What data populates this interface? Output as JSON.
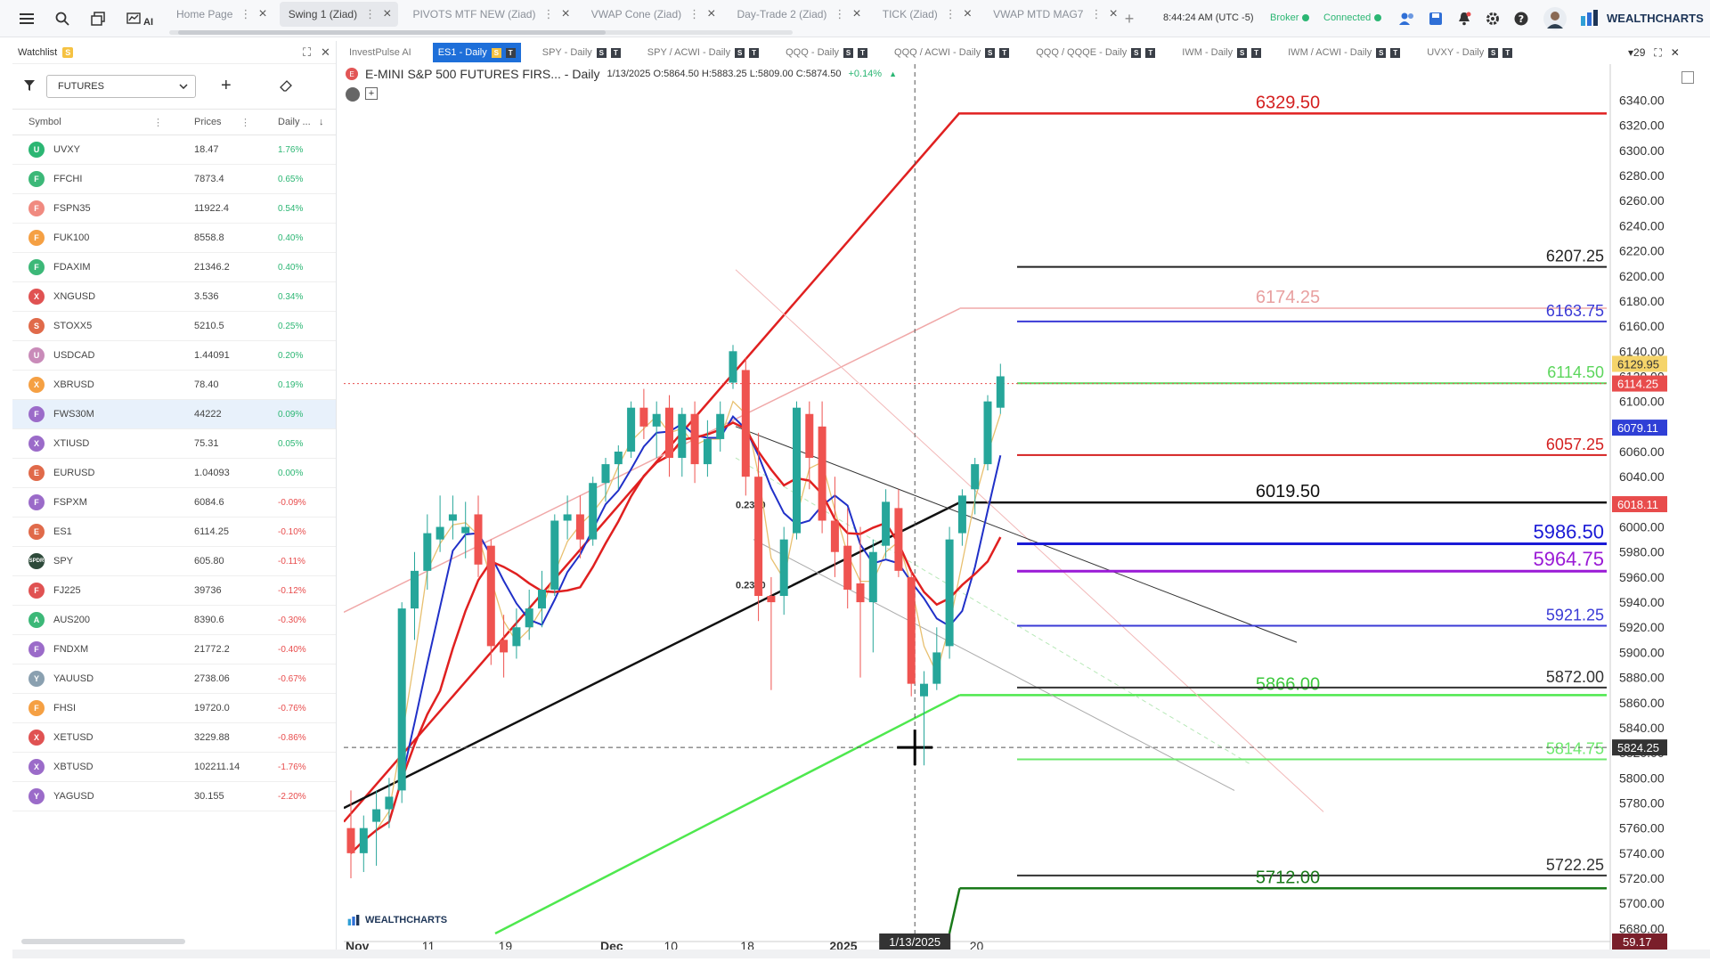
{
  "topbar": {
    "tabs": [
      {
        "label": "Home Page",
        "active": false
      },
      {
        "label": "Swing 1 (Ziad)",
        "active": true
      },
      {
        "label": "PIVOTS MTF NEW (Ziad)",
        "active": false
      },
      {
        "label": "VWAP Cone (Ziad)",
        "active": false
      },
      {
        "label": "Day-Trade 2 (Ziad)",
        "active": false
      },
      {
        "label": "TICK (Ziad)",
        "active": false
      },
      {
        "label": "VWAP MTD MAG7",
        "active": false
      }
    ],
    "clock": "8:44:24 AM",
    "timezone": "(UTC -5)",
    "broker_label": "Broker",
    "connected_label": "Connected",
    "brand": "WEALTHCHARTS",
    "ai_label": "AI"
  },
  "watchlist": {
    "title": "Watchlist",
    "badge": "S",
    "filter": "FUTURES",
    "columns": [
      "Symbol",
      "Prices",
      "Daily ..."
    ],
    "rows": [
      {
        "icon": "U",
        "color": "#2bb673",
        "symbol": "UVXY",
        "price": "18.47",
        "change": "1.76%",
        "dir": "up"
      },
      {
        "icon": "F",
        "color": "#3cb878",
        "symbol": "FFCHI",
        "price": "7873.4",
        "change": "0.65%",
        "dir": "up"
      },
      {
        "icon": "F",
        "color": "#f08a80",
        "symbol": "FSPN35",
        "price": "11922.4",
        "change": "0.54%",
        "dir": "up"
      },
      {
        "icon": "F",
        "color": "#f5a043",
        "symbol": "FUK100",
        "price": "8558.8",
        "change": "0.40%",
        "dir": "up"
      },
      {
        "icon": "F",
        "color": "#3cb878",
        "symbol": "FDAXIM",
        "price": "21346.2",
        "change": "0.40%",
        "dir": "up"
      },
      {
        "icon": "X",
        "color": "#e05252",
        "symbol": "XNGUSD",
        "price": "3.536",
        "change": "0.34%",
        "dir": "up"
      },
      {
        "icon": "S",
        "color": "#e06a4a",
        "symbol": "STOXX5",
        "price": "5210.5",
        "change": "0.25%",
        "dir": "up"
      },
      {
        "icon": "U",
        "color": "#c98bb9",
        "symbol": "USDCAD",
        "price": "1.44091",
        "change": "0.20%",
        "dir": "up"
      },
      {
        "icon": "X",
        "color": "#f5a043",
        "symbol": "XBRUSD",
        "price": "78.40",
        "change": "0.19%",
        "dir": "up"
      },
      {
        "icon": "F",
        "color": "#9b6bc9",
        "symbol": "FWS30M",
        "price": "44222",
        "change": "0.09%",
        "dir": "up",
        "selected": true
      },
      {
        "icon": "X",
        "color": "#9b6bc9",
        "symbol": "XTIUSD",
        "price": "75.31",
        "change": "0.05%",
        "dir": "up"
      },
      {
        "icon": "E",
        "color": "#e06a4a",
        "symbol": "EURUSD",
        "price": "1.04093",
        "change": "0.00%",
        "dir": "up"
      },
      {
        "icon": "F",
        "color": "#9b6bc9",
        "symbol": "FSPXM",
        "price": "6084.6",
        "change": "-0.09%",
        "dir": "down"
      },
      {
        "icon": "E",
        "color": "#e06a4a",
        "symbol": "ES1",
        "price": "6114.25",
        "change": "-0.10%",
        "dir": "down"
      },
      {
        "icon": "SPDR",
        "color": "#2e4a3a",
        "symbol": "SPY",
        "price": "605.80",
        "change": "-0.11%",
        "dir": "down"
      },
      {
        "icon": "F",
        "color": "#e05252",
        "symbol": "FJ225",
        "price": "39736",
        "change": "-0.12%",
        "dir": "down"
      },
      {
        "icon": "A",
        "color": "#3cb878",
        "symbol": "AUS200",
        "price": "8390.6",
        "change": "-0.30%",
        "dir": "down"
      },
      {
        "icon": "F",
        "color": "#9b6bc9",
        "symbol": "FNDXM",
        "price": "21772.2",
        "change": "-0.40%",
        "dir": "down"
      },
      {
        "icon": "Y",
        "color": "#8aa0b0",
        "symbol": "YAUUSD",
        "price": "2738.06",
        "change": "-0.67%",
        "dir": "down"
      },
      {
        "icon": "F",
        "color": "#f5a043",
        "symbol": "FHSI",
        "price": "19720.0",
        "change": "-0.76%",
        "dir": "down"
      },
      {
        "icon": "X",
        "color": "#e05252",
        "symbol": "XETUSD",
        "price": "3229.88",
        "change": "-0.86%",
        "dir": "down"
      },
      {
        "icon": "X",
        "color": "#9b6bc9",
        "symbol": "XBTUSD",
        "price": "102211.14",
        "change": "-1.76%",
        "dir": "down"
      },
      {
        "icon": "Y",
        "color": "#9b6bc9",
        "symbol": "YAGUSD",
        "price": "30.155",
        "change": "-2.20%",
        "dir": "down"
      }
    ]
  },
  "chart_tabs": [
    {
      "label": "InvestPulse AI",
      "active": false,
      "sq": []
    },
    {
      "label": "ES1 - Daily",
      "active": true,
      "sq": [
        "S",
        "T"
      ]
    },
    {
      "label": "SPY - Daily",
      "active": false,
      "sq": [
        "S",
        "T"
      ]
    },
    {
      "label": "SPY / ACWI - Daily",
      "active": false,
      "sq": [
        "S",
        "T"
      ]
    },
    {
      "label": "QQQ - Daily",
      "active": false,
      "sq": [
        "S",
        "T"
      ]
    },
    {
      "label": "QQQ / ACWI - Daily",
      "active": false,
      "sq": [
        "S",
        "T"
      ]
    },
    {
      "label": "QQQ / QQQE - Daily",
      "active": false,
      "sq": [
        "S",
        "T"
      ]
    },
    {
      "label": "IWM - Daily",
      "active": false,
      "sq": [
        "S",
        "T"
      ]
    },
    {
      "label": "IWM / ACWI - Daily",
      "active": false,
      "sq": [
        "S",
        "T"
      ]
    },
    {
      "label": "UVXY - Daily",
      "active": false,
      "sq": [
        "S",
        "T"
      ]
    }
  ],
  "chart_tabs_count": "29",
  "chart": {
    "title": "E-MINI S&P 500 FUTURES FIRS... - Daily",
    "ohlc": "1/13/2025 O:5864.50 H:5883.25 L:5809.00 C:5874.50",
    "change": "+0.14%",
    "watermark": "WEALTHCHARTS",
    "crosshair_date": "1/13/2025",
    "crosshair_price": "5824.25",
    "bottom_right_value": "59.17",
    "price_tags": [
      {
        "value": 6129.95,
        "text": "6129.95",
        "bg": "#f5d46a",
        "fg": "#333"
      },
      {
        "value": 6114.25,
        "text": "6114.25",
        "bg": "#e84c4c",
        "fg": "#fff"
      },
      {
        "value": 6079.11,
        "text": "6079.11",
        "bg": "#2f3fd6",
        "fg": "#fff"
      },
      {
        "value": 6018.11,
        "text": "6018.11",
        "bg": "#e84c4c",
        "fg": "#fff"
      }
    ],
    "levels": [
      {
        "value": 6329.5,
        "text": "6329.50",
        "color": "#d42020",
        "label_pos": "mid",
        "size": 20
      },
      {
        "value": 6207.25,
        "text": "6207.25",
        "color": "#222",
        "label_pos": "right",
        "size": 18
      },
      {
        "value": 6174.25,
        "text": "6174.25",
        "color": "#e8a0a0",
        "label_pos": "mid",
        "size": 20
      },
      {
        "value": 6163.75,
        "text": "6163.75",
        "color": "#3a3ad6",
        "label_pos": "right",
        "size": 18
      },
      {
        "value": 6114.5,
        "text": "6114.50",
        "color": "#5cd65c",
        "label_pos": "right",
        "size": 18
      },
      {
        "value": 6057.25,
        "text": "6057.25",
        "color": "#d42020",
        "label_pos": "right",
        "size": 18
      },
      {
        "value": 6019.5,
        "text": "6019.50",
        "color": "#111",
        "label_pos": "mid",
        "size": 20
      },
      {
        "value": 5986.5,
        "text": "5986.50",
        "color": "#1a1ad6",
        "label_pos": "right",
        "size": 22
      },
      {
        "value": 5964.75,
        "text": "5964.75",
        "color": "#9a1ad6",
        "label_pos": "right",
        "size": 22
      },
      {
        "value": 5921.25,
        "text": "5921.25",
        "color": "#3a3ad6",
        "label_pos": "right",
        "size": 18
      },
      {
        "value": 5866.0,
        "text": "5866.00",
        "color": "#3cc83c",
        "label_pos": "mid",
        "size": 20
      },
      {
        "value": 5872.0,
        "text": "5872.00",
        "color": "#333",
        "label_pos": "right",
        "size": 18
      },
      {
        "value": 5814.75,
        "text": "5814.75",
        "color": "#6de86d",
        "label_pos": "right",
        "size": 18
      },
      {
        "value": 5722.25,
        "text": "5722.25",
        "color": "#333",
        "label_pos": "right",
        "size": 18
      },
      {
        "value": 5712.0,
        "text": "5712.00",
        "color": "#1a7a1a",
        "label_pos": "mid",
        "size": 20
      }
    ],
    "fib_labels": [
      "0.2340",
      "0.2340"
    ],
    "chart_data": {
      "type": "candlestick",
      "y_ticks": [
        6340,
        6320,
        6300,
        6280,
        6260,
        6240,
        6220,
        6200,
        6180,
        6160,
        6140,
        6120,
        6100,
        6080,
        6060,
        6040,
        6020,
        6000,
        5980,
        5960,
        5940,
        5920,
        5900,
        5880,
        5860,
        5840,
        5820,
        5800,
        5780,
        5760,
        5740,
        5720,
        5700,
        5680
      ],
      "ylim": [
        5676,
        6356
      ],
      "x_labels": [
        {
          "text": "Nov",
          "bold": true,
          "bar": 0
        },
        {
          "text": "11",
          "bold": false,
          "bar": 6
        },
        {
          "text": "19",
          "bold": false,
          "bar": 12
        },
        {
          "text": "Dec",
          "bold": true,
          "bar": 20
        },
        {
          "text": "10",
          "bold": false,
          "bar": 25
        },
        {
          "text": "18",
          "bold": false,
          "bar": 31
        },
        {
          "text": "2025",
          "bold": true,
          "bar": 38
        },
        {
          "text": "20",
          "bold": false,
          "bar": 49
        }
      ],
      "candles": [
        [
          5760,
          5790,
          5720,
          5740
        ],
        [
          5740,
          5770,
          5725,
          5760
        ],
        [
          5765,
          5790,
          5730,
          5775
        ],
        [
          5775,
          5800,
          5760,
          5785
        ],
        [
          5790,
          5940,
          5780,
          5935
        ],
        [
          5935,
          5980,
          5910,
          5965
        ],
        [
          5965,
          6010,
          5950,
          5995
        ],
        [
          5990,
          6025,
          5980,
          6000
        ],
        [
          6005,
          6025,
          5990,
          6010
        ],
        [
          5995,
          6020,
          5975,
          6000
        ],
        [
          6010,
          6025,
          5960,
          5970
        ],
        [
          5985,
          5990,
          5890,
          5905
        ],
        [
          5910,
          5930,
          5880,
          5900
        ],
        [
          5905,
          5935,
          5895,
          5920
        ],
        [
          5920,
          5950,
          5910,
          5935
        ],
        [
          5935,
          5965,
          5920,
          5950
        ],
        [
          5950,
          6010,
          5945,
          6005
        ],
        [
          6005,
          6025,
          5990,
          6010
        ],
        [
          6010,
          6025,
          5975,
          5990
        ],
        [
          5990,
          6040,
          5985,
          6035
        ],
        [
          6035,
          6055,
          6020,
          6050
        ],
        [
          6050,
          6065,
          6030,
          6060
        ],
        [
          6060,
          6100,
          6055,
          6095
        ],
        [
          6095,
          6110,
          6070,
          6080
        ],
        [
          6080,
          6100,
          6055,
          6090
        ],
        [
          6095,
          6105,
          6040,
          6055
        ],
        [
          6055,
          6095,
          6040,
          6090
        ],
        [
          6090,
          6100,
          6035,
          6050
        ],
        [
          6050,
          6085,
          6040,
          6070
        ],
        [
          6070,
          6100,
          6060,
          6090
        ],
        [
          6115,
          6145,
          6110,
          6140
        ],
        [
          6125,
          6135,
          6025,
          6040
        ],
        [
          6040,
          6075,
          5925,
          5945
        ],
        [
          5945,
          5960,
          5870,
          5940
        ],
        [
          5945,
          6000,
          5930,
          5990
        ],
        [
          5995,
          6100,
          5990,
          6095
        ],
        [
          6090,
          6100,
          6030,
          6055
        ],
        [
          6080,
          6100,
          5995,
          6005
        ],
        [
          6005,
          6040,
          5960,
          5980
        ],
        [
          5985,
          6015,
          5935,
          5950
        ],
        [
          5955,
          6000,
          5880,
          5940
        ],
        [
          5940,
          5990,
          5900,
          5980
        ],
        [
          5985,
          6030,
          5975,
          6020
        ],
        [
          6015,
          6030,
          5960,
          5965
        ],
        [
          5960,
          5965,
          5865,
          5875
        ],
        [
          5865,
          5885,
          5810,
          5875
        ],
        [
          5875,
          5920,
          5870,
          5900
        ],
        [
          5905,
          6000,
          5895,
          5990
        ],
        [
          5995,
          6030,
          5985,
          6025
        ],
        [
          6030,
          6055,
          6010,
          6050
        ],
        [
          6050,
          6105,
          6045,
          6100
        ],
        [
          6095,
          6130,
          6090,
          6120
        ]
      ]
    }
  }
}
